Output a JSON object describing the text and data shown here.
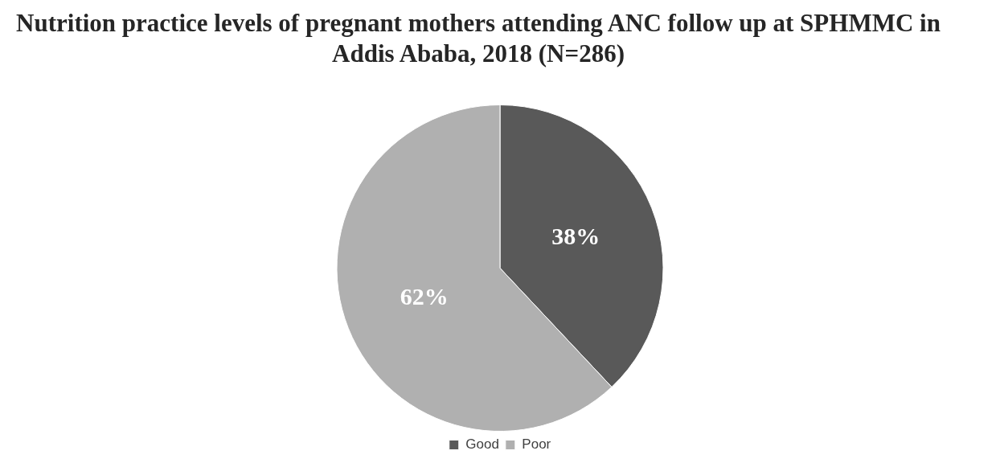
{
  "chart_data": {
    "type": "pie",
    "title": "Nutrition practice levels of pregnant mothers attending ANC follow up at SPHMMC in Addis Ababa, 2018 (N=286)",
    "categories": [
      "Good",
      "Poor"
    ],
    "values": [
      38,
      62
    ],
    "colors": [
      "#595959",
      "#b0b0b0"
    ],
    "value_labels": [
      "38%",
      "62%"
    ],
    "legend": "bottom"
  }
}
